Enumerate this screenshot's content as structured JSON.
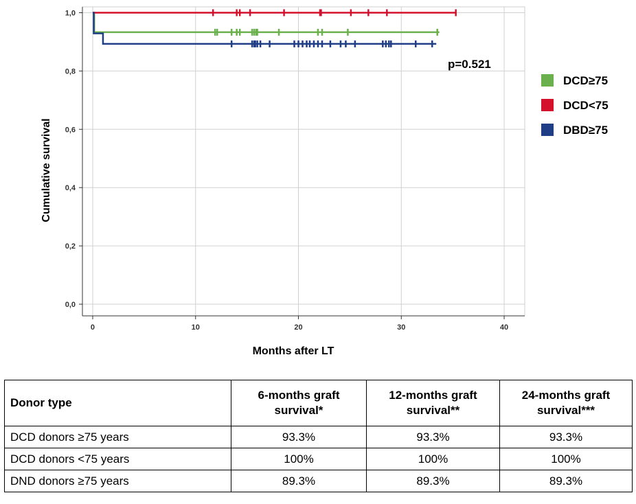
{
  "chart_data": {
    "type": "line",
    "xlabel": "Months after LT",
    "ylabel": "Cumulative survival",
    "xlim": [
      -1,
      42
    ],
    "ylim": [
      -0.04,
      1.02
    ],
    "x_ticks": [
      0,
      10,
      20,
      30,
      40
    ],
    "x_tick_labels": [
      "0",
      "10",
      "20",
      "30",
      "40"
    ],
    "y_ticks": [
      0.0,
      0.2,
      0.4,
      0.6,
      0.8,
      1.0
    ],
    "y_tick_labels": [
      "0,0",
      "0,2",
      "0,4",
      "0,6",
      "0,8",
      "1,0"
    ],
    "grid": true,
    "annotation": "p=0.521",
    "legend_placement": "right",
    "series": [
      {
        "name": "DCD≥75",
        "color": "#6ab04c",
        "steps": [
          [
            0,
            1.0
          ],
          [
            0.15,
            0.933
          ],
          [
            33.7,
            0.933
          ]
        ],
        "censored": [
          11.9,
          12.1,
          13.5,
          14.0,
          14.3,
          15.5,
          15.7,
          15.9,
          16.0,
          18.1,
          21.9,
          22.3,
          24.8,
          33.5
        ]
      },
      {
        "name": "DCD<75",
        "color": "#d3112d",
        "steps": [
          [
            0,
            1.0
          ],
          [
            35.3,
            1.0
          ]
        ],
        "censored": [
          11.7,
          14.0,
          14.3,
          15.3,
          18.6,
          22.1,
          22.2,
          25.1,
          26.8,
          28.6,
          35.3
        ]
      },
      {
        "name": "DBD≥75",
        "color": "#1f3e86",
        "steps": [
          [
            0,
            1.0
          ],
          [
            0.1,
            0.929
          ],
          [
            1.0,
            0.929
          ],
          [
            1.0,
            0.893
          ],
          [
            33.4,
            0.893
          ]
        ],
        "censored": [
          13.5,
          15.5,
          15.7,
          15.8,
          16.0,
          16.3,
          17.2,
          19.6,
          20.0,
          20.4,
          20.8,
          21.1,
          21.5,
          21.9,
          22.3,
          23.1,
          24.1,
          24.6,
          25.5,
          28.2,
          28.5,
          28.8,
          29.0,
          31.4,
          33.0
        ]
      }
    ]
  },
  "table": {
    "headers": [
      "Donor type",
      "6-months graft survival*",
      "12-months graft survival**",
      "24-months graft survival***"
    ],
    "header_lines": [
      [
        "Donor type"
      ],
      [
        "6-months graft",
        "survival*"
      ],
      [
        "12-months graft",
        "survival**"
      ],
      [
        "24-months graft",
        "survival***"
      ]
    ],
    "rows": [
      [
        "DCD donors ≥75 years",
        "93.3%",
        "93.3%",
        "93.3%"
      ],
      [
        "DCD donors <75 years",
        "100%",
        "100%",
        "100%"
      ],
      [
        "DND donors ≥75 years",
        "89.3%",
        "89.3%",
        "89.3%"
      ]
    ]
  }
}
